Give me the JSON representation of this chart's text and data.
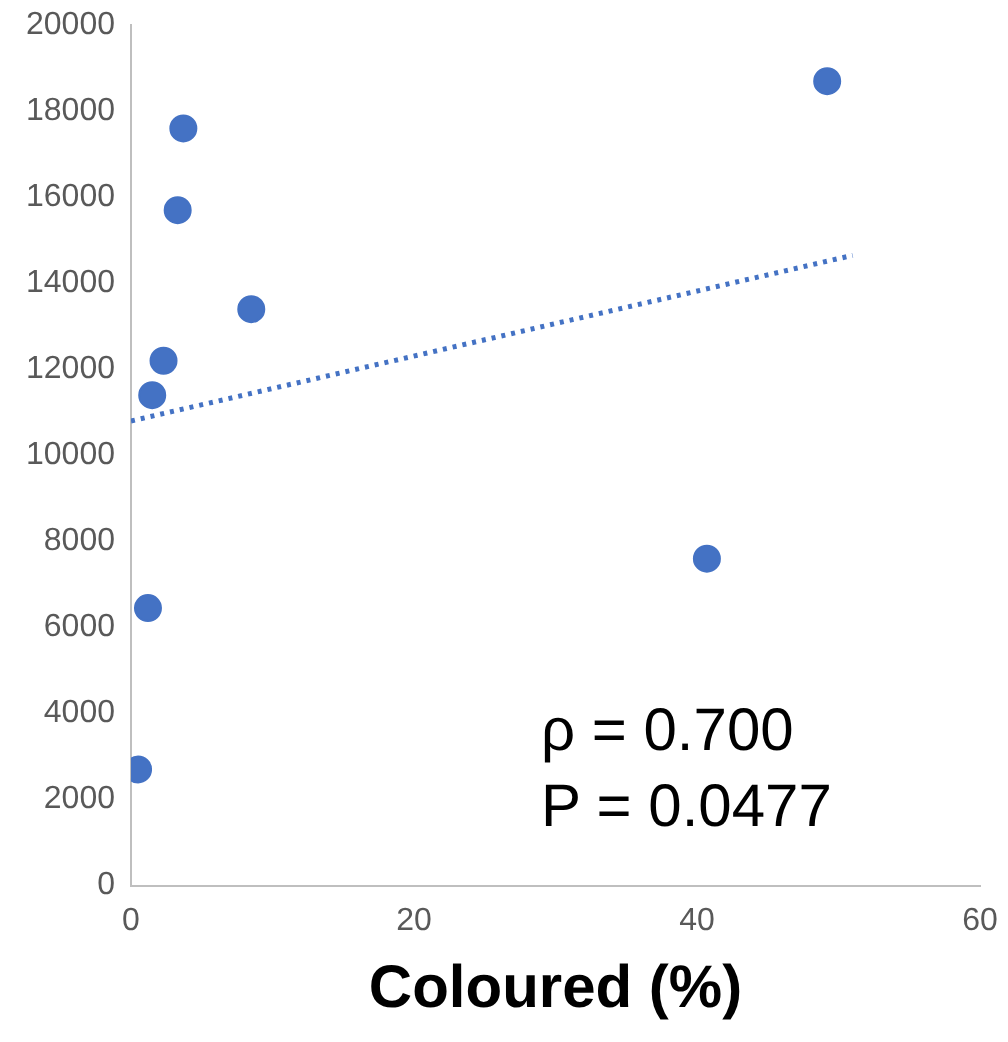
{
  "chart_data": {
    "type": "scatter",
    "xlabel": "Coloured (%)",
    "xlim": [
      0,
      60
    ],
    "xticks": [
      0,
      20,
      40,
      60
    ],
    "ylim": [
      0,
      20000
    ],
    "yticks": [
      0,
      2000,
      4000,
      6000,
      8000,
      10000,
      12000,
      14000,
      16000,
      18000,
      20000
    ],
    "grid": false,
    "legend": false,
    "marker": "circle",
    "series": [
      {
        "color": "#4472c4",
        "x": [
          0.5,
          1.2,
          1.5,
          2.3,
          8.5,
          3.3,
          3.7,
          40.7,
          49.2
        ],
        "values": [
          2700,
          6450,
          11400,
          12200,
          13400,
          15700,
          17600,
          7600,
          18700
        ]
      },
      {
        "type": "line",
        "color": "#4472c4",
        "line_style": "dotted",
        "marker": "none",
        "x": [
          0,
          51
        ],
        "values": [
          10800,
          14650
        ]
      }
    ],
    "annotations": [
      "ρ = 0.700",
      "P = 0.0477"
    ]
  }
}
